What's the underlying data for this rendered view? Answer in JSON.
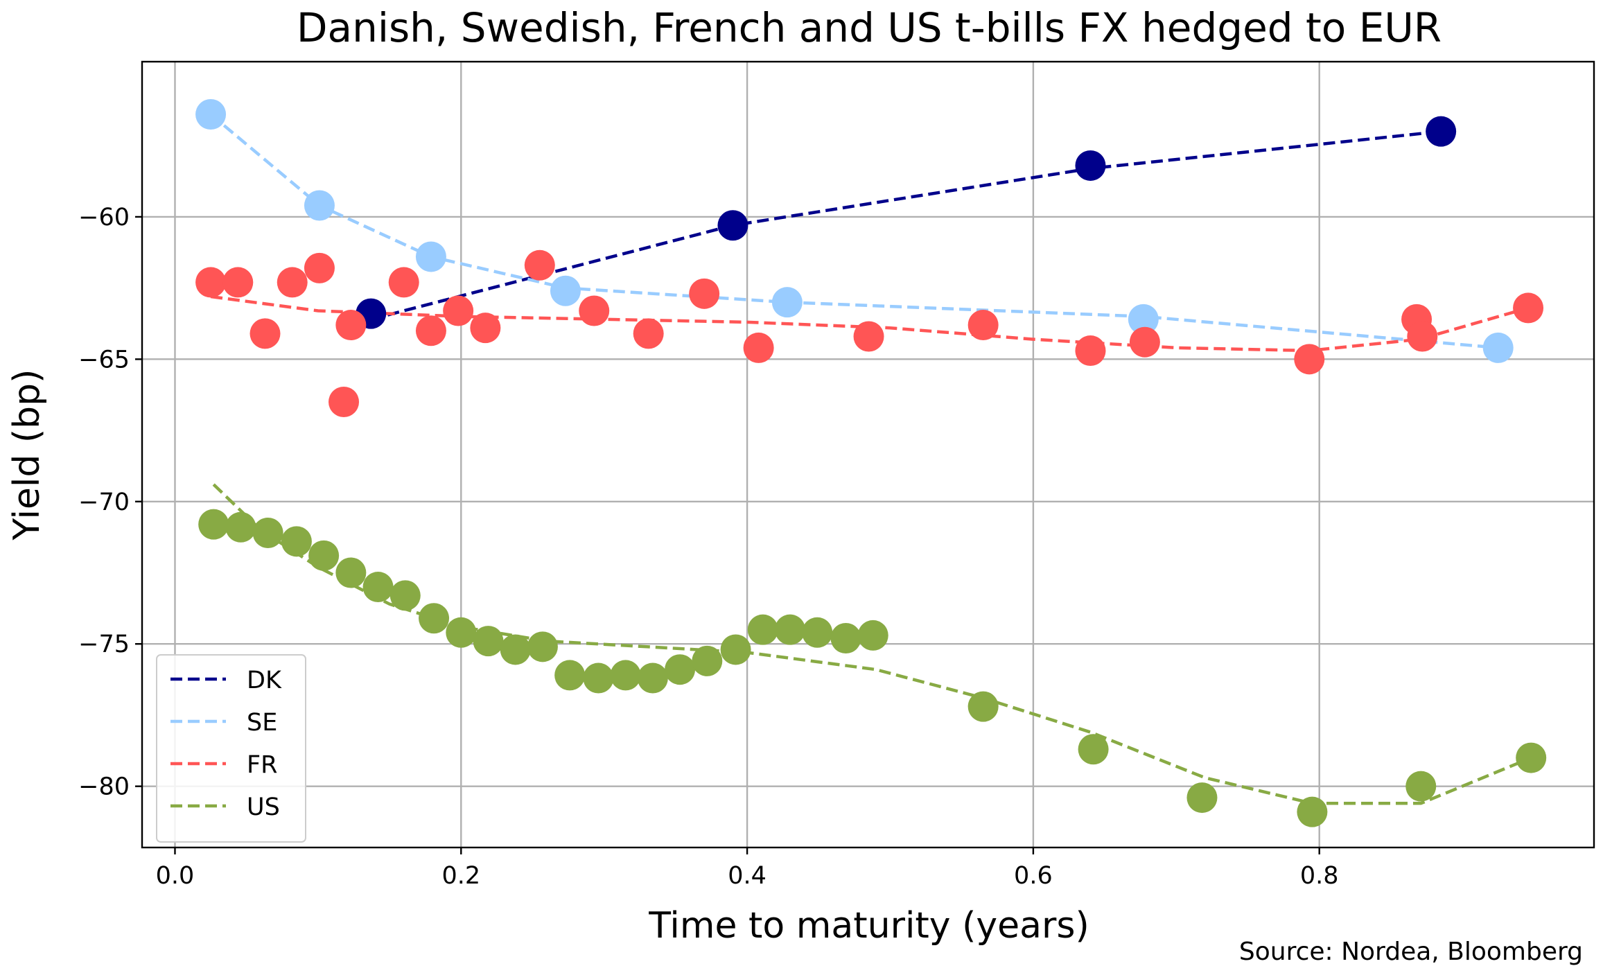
{
  "chart_data": {
    "type": "scatter",
    "title": "Danish, Swedish, French and US t-bills FX hedged to EUR",
    "xlabel": "Time to maturity (years)",
    "ylabel": "Yield (bp)",
    "source": "Source: Nordea, Bloomberg",
    "xlim": [
      -0.023,
      0.992
    ],
    "ylim": [
      -82.15,
      -54.55
    ],
    "xticks": [
      0.0,
      0.2,
      0.4,
      0.6,
      0.8
    ],
    "xtick_labels": [
      "0.0",
      "0.2",
      "0.4",
      "0.6",
      "0.8"
    ],
    "yticks": [
      -80,
      -75,
      -70,
      -65,
      -60
    ],
    "ytick_labels": [
      "−80",
      "−75",
      "−70",
      "−65",
      "−60"
    ],
    "grid": true,
    "legend_position": "lower-left",
    "series": [
      {
        "name": "DK",
        "color": "#00008B",
        "points": [
          [
            0.137,
            -63.4
          ],
          [
            0.39,
            -60.3
          ],
          [
            0.64,
            -58.2
          ],
          [
            0.885,
            -57.0
          ]
        ],
        "fit": [
          [
            0.137,
            -63.6
          ],
          [
            0.39,
            -60.3
          ],
          [
            0.64,
            -58.3
          ],
          [
            0.885,
            -57.0
          ]
        ]
      },
      {
        "name": "SE",
        "color": "#99CCFF",
        "points": [
          [
            0.025,
            -56.4
          ],
          [
            0.101,
            -59.6
          ],
          [
            0.179,
            -61.4
          ],
          [
            0.273,
            -62.6
          ],
          [
            0.428,
            -63.0
          ],
          [
            0.677,
            -63.6
          ],
          [
            0.925,
            -64.6
          ]
        ],
        "fit": [
          [
            0.025,
            -56.4
          ],
          [
            0.101,
            -59.6
          ],
          [
            0.179,
            -61.4
          ],
          [
            0.273,
            -62.5
          ],
          [
            0.428,
            -63.0
          ],
          [
            0.677,
            -63.5
          ],
          [
            0.925,
            -64.6
          ]
        ]
      },
      {
        "name": "FR",
        "color": "#FF5555",
        "points": [
          [
            0.025,
            -62.3
          ],
          [
            0.044,
            -62.3
          ],
          [
            0.063,
            -64.1
          ],
          [
            0.082,
            -62.3
          ],
          [
            0.101,
            -61.8
          ],
          [
            0.118,
            -66.5
          ],
          [
            0.123,
            -63.8
          ],
          [
            0.16,
            -62.3
          ],
          [
            0.179,
            -64.0
          ],
          [
            0.198,
            -63.3
          ],
          [
            0.217,
            -63.9
          ],
          [
            0.255,
            -61.7
          ],
          [
            0.293,
            -63.3
          ],
          [
            0.331,
            -64.1
          ],
          [
            0.37,
            -62.7
          ],
          [
            0.408,
            -64.6
          ],
          [
            0.485,
            -64.2
          ],
          [
            0.565,
            -63.8
          ],
          [
            0.64,
            -64.7
          ],
          [
            0.678,
            -64.4
          ],
          [
            0.793,
            -65.0
          ],
          [
            0.868,
            -63.6
          ],
          [
            0.872,
            -64.2
          ],
          [
            0.946,
            -63.2
          ]
        ],
        "fit": [
          [
            0.025,
            -62.8
          ],
          [
            0.1,
            -63.3
          ],
          [
            0.2,
            -63.5
          ],
          [
            0.3,
            -63.6
          ],
          [
            0.4,
            -63.7
          ],
          [
            0.5,
            -63.9
          ],
          [
            0.6,
            -64.3
          ],
          [
            0.7,
            -64.6
          ],
          [
            0.793,
            -64.7
          ],
          [
            0.87,
            -64.3
          ],
          [
            0.946,
            -63.2
          ]
        ]
      },
      {
        "name": "US",
        "color": "#88AA44",
        "points": [
          [
            0.027,
            -70.8
          ],
          [
            0.046,
            -70.9
          ],
          [
            0.065,
            -71.1
          ],
          [
            0.085,
            -71.4
          ],
          [
            0.104,
            -71.9
          ],
          [
            0.123,
            -72.5
          ],
          [
            0.142,
            -73.0
          ],
          [
            0.161,
            -73.3
          ],
          [
            0.181,
            -74.1
          ],
          [
            0.2,
            -74.6
          ],
          [
            0.219,
            -74.9
          ],
          [
            0.238,
            -75.2
          ],
          [
            0.257,
            -75.1
          ],
          [
            0.276,
            -76.1
          ],
          [
            0.296,
            -76.2
          ],
          [
            0.315,
            -76.1
          ],
          [
            0.334,
            -76.2
          ],
          [
            0.353,
            -75.9
          ],
          [
            0.372,
            -75.6
          ],
          [
            0.392,
            -75.2
          ],
          [
            0.411,
            -74.5
          ],
          [
            0.43,
            -74.5
          ],
          [
            0.449,
            -74.6
          ],
          [
            0.469,
            -74.8
          ],
          [
            0.488,
            -74.7
          ],
          [
            0.565,
            -77.2
          ],
          [
            0.642,
            -78.7
          ],
          [
            0.718,
            -80.4
          ],
          [
            0.795,
            -80.9
          ],
          [
            0.871,
            -80.0
          ],
          [
            0.948,
            -79.0
          ]
        ],
        "fit": [
          [
            0.027,
            -69.4
          ],
          [
            0.06,
            -71.0
          ],
          [
            0.1,
            -72.3
          ],
          [
            0.15,
            -73.6
          ],
          [
            0.2,
            -74.4
          ],
          [
            0.26,
            -74.9
          ],
          [
            0.33,
            -75.1
          ],
          [
            0.4,
            -75.3
          ],
          [
            0.49,
            -75.9
          ],
          [
            0.565,
            -76.9
          ],
          [
            0.64,
            -78.1
          ],
          [
            0.72,
            -79.7
          ],
          [
            0.795,
            -80.6
          ],
          [
            0.871,
            -80.6
          ],
          [
            0.948,
            -79.0
          ]
        ]
      }
    ]
  }
}
